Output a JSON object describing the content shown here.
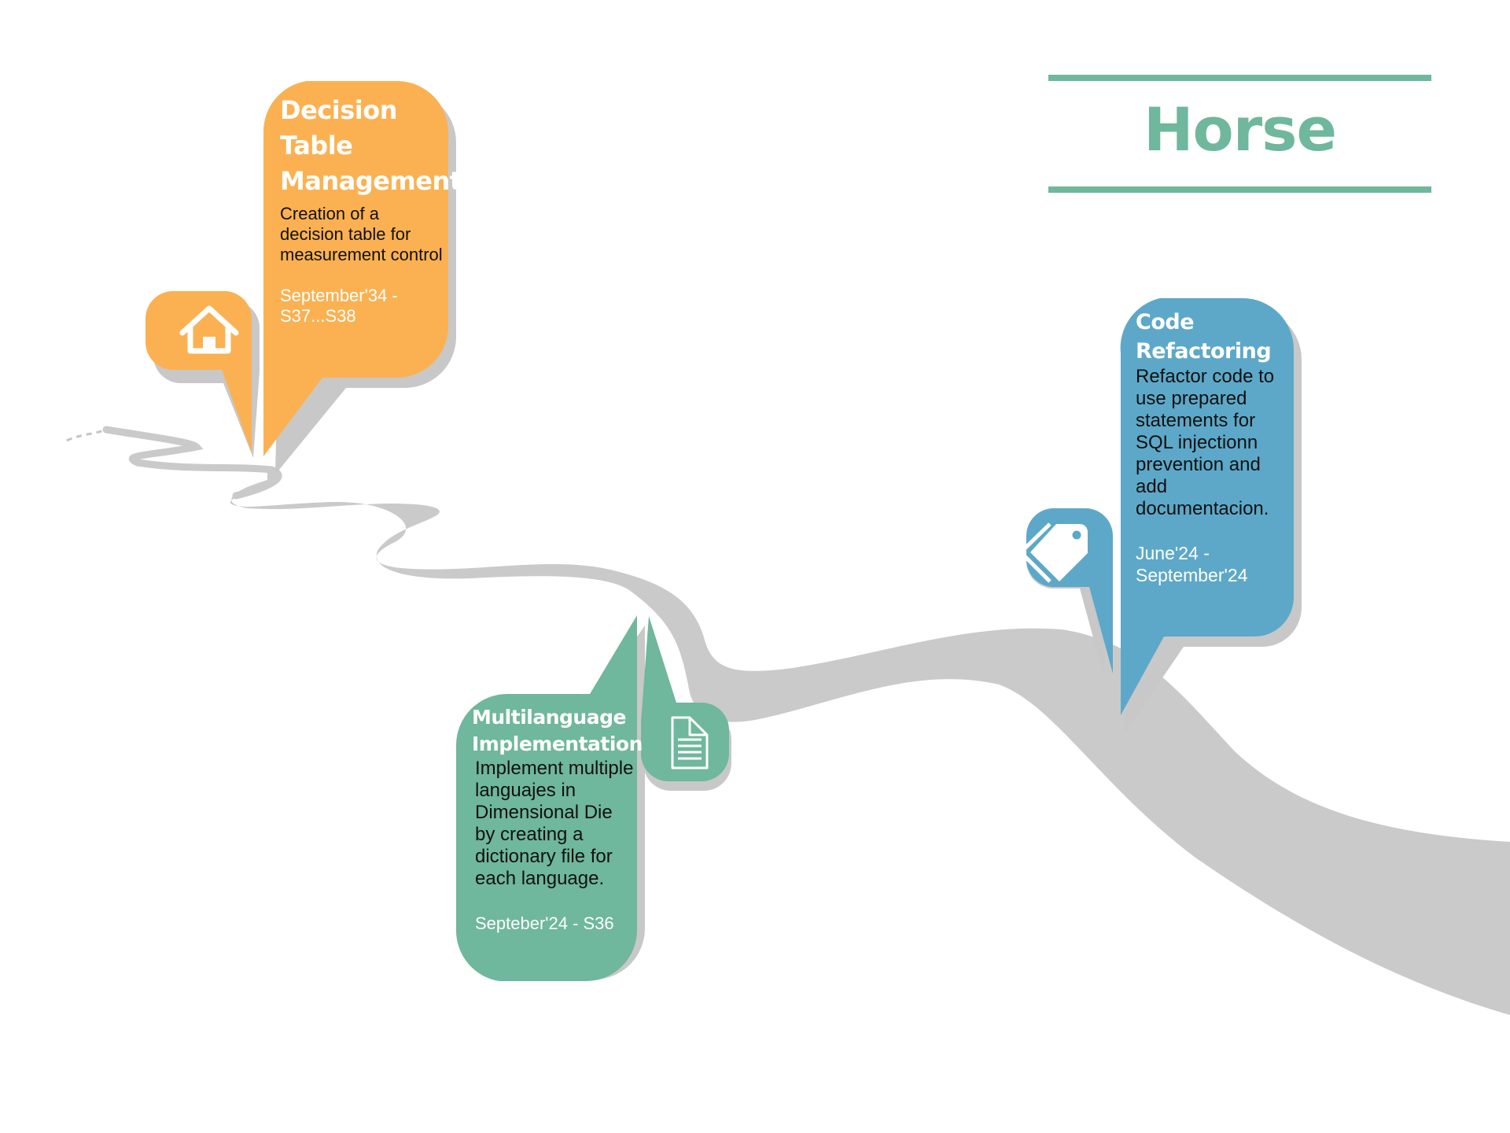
{
  "title": "Horse",
  "colors": {
    "accent_green": "#6fb79d",
    "orange": "#fbb152",
    "teal": "#6fb79d",
    "blue": "#5da8c8",
    "road": "#cacaca",
    "shadow": "#c8c8c8"
  },
  "milestones": [
    {
      "title": "Decision Table Management",
      "description": "Creation of a decision table for measurement control",
      "date": "September'34 - S37...S38",
      "icon": "home-icon",
      "color": "#fbb152"
    },
    {
      "title": "Multilanguage Implementation",
      "description": "Implement multiple languajes in Dimensional Die by creating a dictionary file for each language.",
      "date": "Septeber'24 - S36",
      "icon": "document-icon",
      "color": "#6fb79d"
    },
    {
      "title": "Code Refactoring",
      "description": "Refactor code to use prepared statements for SQL injectionn prevention and add documentacion.",
      "date": "June'24 - September'24",
      "icon": "tag-icon",
      "color": "#5da8c8"
    }
  ]
}
